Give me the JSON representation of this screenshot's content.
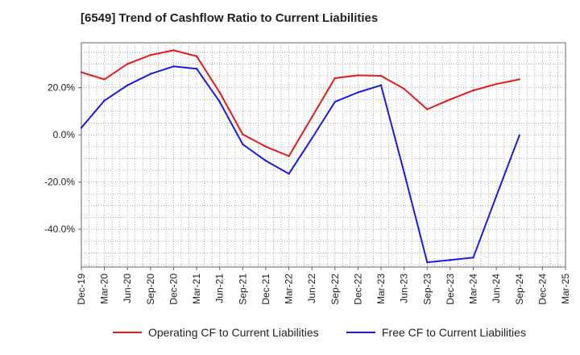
{
  "chart_data": {
    "type": "line",
    "title": "[6549]  Trend of Cashflow Ratio to Current Liabilities",
    "xlabel": "",
    "ylabel": "",
    "categories": [
      "Dec-19",
      "Mar-20",
      "Jun-20",
      "Sep-20",
      "Dec-20",
      "Mar-21",
      "Jun-21",
      "Sep-21",
      "Dec-21",
      "Mar-22",
      "Jun-22",
      "Sep-22",
      "Dec-22",
      "Mar-23",
      "Jun-23",
      "Sep-23",
      "Dec-23",
      "Mar-24",
      "Jun-24",
      "Sep-24",
      "Dec-24",
      "Mar-25"
    ],
    "ylim": [
      -56,
      39
    ],
    "yticks": [
      20,
      0,
      -20,
      -40
    ],
    "ytick_labels": [
      "20.0%",
      "0.0%",
      "-20.0%",
      "-40.0%"
    ],
    "grid": true,
    "legend_position": "bottom",
    "series": [
      {
        "name": "Operating CF to Current Liabilities",
        "color": "#e8191b",
        "values": [
          26.5,
          23.5,
          30.0,
          33.8,
          35.8,
          33.3,
          18.0,
          0.2,
          -5.0,
          -9.0,
          7.5,
          24.0,
          25.2,
          25.0,
          19.5,
          10.8,
          15.0,
          18.8,
          21.5,
          23.5,
          null,
          null
        ]
      },
      {
        "name": "Free CF to Current Liabilities",
        "color": "#1a1ae8",
        "values": [
          3.0,
          14.5,
          21.0,
          25.8,
          29.0,
          28.0,
          14.0,
          -4.0,
          -11.0,
          -16.5,
          -1.5,
          14.0,
          18.0,
          21.0,
          -16.0,
          -54.0,
          -53.0,
          -52.0,
          -26.0,
          -0.2,
          null,
          null
        ]
      }
    ]
  }
}
